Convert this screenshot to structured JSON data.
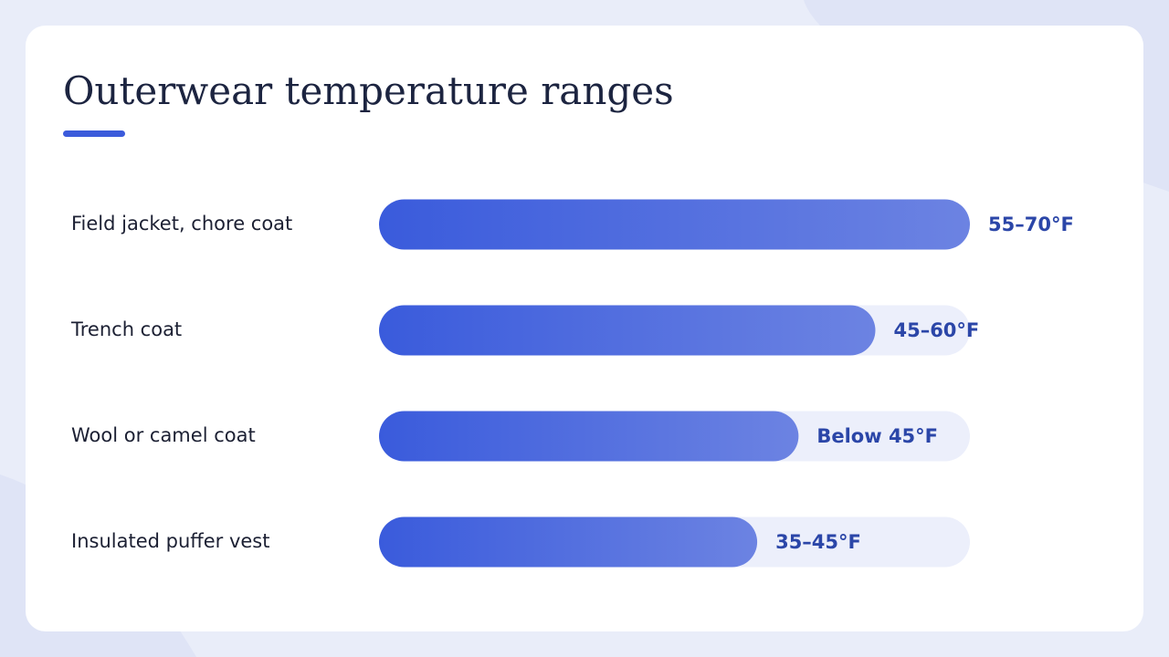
{
  "chart_data": {
    "type": "bar",
    "orientation": "horizontal",
    "title": "Outerwear temperature ranges",
    "categories": [
      "Field jacket, chore coat",
      "Trench coat",
      "Wool or camel coat",
      "Insulated puffer vest"
    ],
    "values": [
      100,
      84,
      71,
      64
    ],
    "range_labels": [
      "55–70°F",
      "45–60°F",
      "Below 45°F",
      "35–45°F"
    ],
    "xlim": [
      0,
      100
    ],
    "color": [
      "#3a5bdc",
      "#6c83e2"
    ],
    "track_color": "#eceffb"
  }
}
